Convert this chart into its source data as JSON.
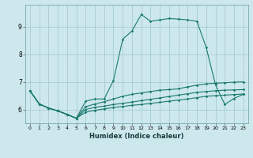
{
  "xlabel": "Humidex (Indice chaleur)",
  "bg_color": "#cce8ec",
  "grid_color": "#a0c8cc",
  "line_color": "#1a7a6e",
  "xlim": [
    -0.5,
    23.5
  ],
  "ylim": [
    5.5,
    9.8
  ],
  "yticks": [
    6,
    7,
    8,
    9
  ],
  "xticks": [
    0,
    1,
    2,
    3,
    4,
    5,
    6,
    7,
    8,
    9,
    10,
    11,
    12,
    13,
    14,
    15,
    16,
    17,
    18,
    19,
    20,
    21,
    22,
    23
  ],
  "series": [
    [
      6.68,
      6.2,
      6.05,
      5.95,
      5.82,
      5.68,
      6.3,
      6.38,
      6.38,
      7.05,
      8.55,
      8.85,
      9.45,
      9.2,
      9.25,
      9.3,
      9.28,
      9.25,
      9.2,
      8.25,
      6.9,
      6.18,
      6.4,
      6.55
    ],
    [
      6.68,
      6.2,
      6.05,
      5.95,
      5.82,
      5.68,
      6.1,
      6.2,
      6.28,
      6.38,
      6.48,
      6.55,
      6.6,
      6.65,
      6.7,
      6.72,
      6.75,
      6.82,
      6.88,
      6.93,
      6.95,
      6.97,
      6.99,
      7.0
    ],
    [
      6.68,
      6.2,
      6.05,
      5.95,
      5.82,
      5.68,
      6.0,
      6.08,
      6.12,
      6.18,
      6.22,
      6.27,
      6.32,
      6.37,
      6.42,
      6.47,
      6.52,
      6.57,
      6.62,
      6.65,
      6.68,
      6.7,
      6.71,
      6.72
    ],
    [
      6.68,
      6.2,
      6.05,
      5.95,
      5.82,
      5.68,
      5.9,
      5.97,
      6.02,
      6.07,
      6.11,
      6.15,
      6.18,
      6.22,
      6.26,
      6.3,
      6.34,
      6.38,
      6.43,
      6.48,
      6.5,
      6.52,
      6.54,
      6.56
    ]
  ]
}
